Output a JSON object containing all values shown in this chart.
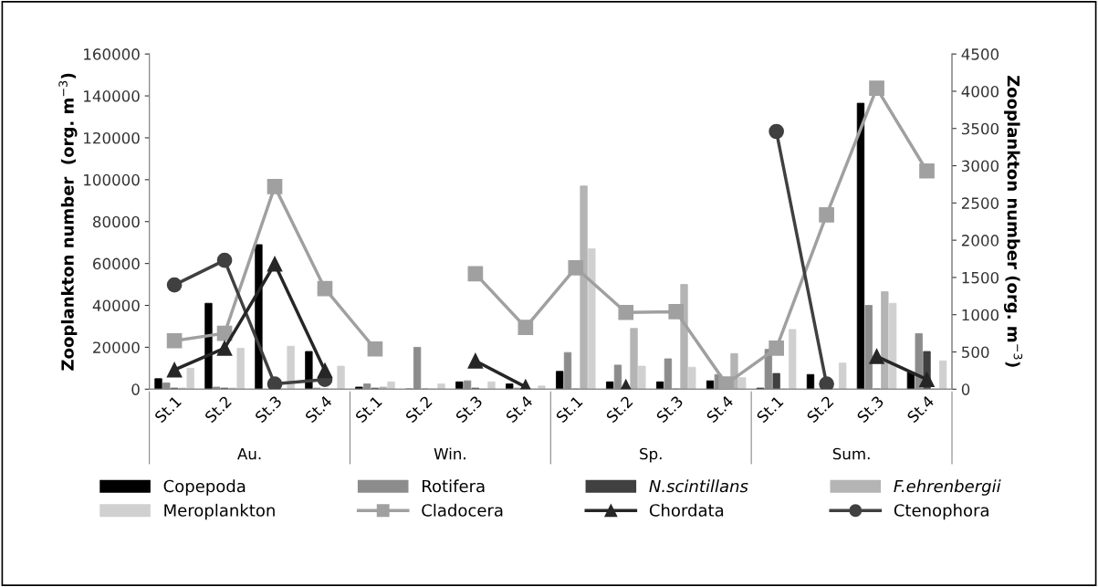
{
  "chart_data": {
    "type": "bar",
    "categories": [
      "St.1",
      "St.2",
      "St.3",
      "St.4",
      "St.1",
      "St.2",
      "St.3",
      "St.4",
      "St.1",
      "St.2",
      "St.3",
      "St.4",
      "St.1",
      "St.2",
      "St.3",
      "St.4"
    ],
    "annotations": [
      "Au.",
      "Win.",
      "Sp.",
      "Sum."
    ],
    "ylabel": "Zooplankton number  (org. m$^{−3}$)",
    "y2label": "Zooplankton number (org. m$^{−3}$)",
    "ylim": [
      0,
      160000
    ],
    "yticks": [
      0,
      20000,
      40000,
      60000,
      80000,
      100000,
      120000,
      140000,
      160000
    ],
    "y2lim": [
      0,
      4500
    ],
    "y2ticks": [
      0,
      500,
      1000,
      1500,
      2000,
      2500,
      3000,
      3500,
      4000,
      4500
    ],
    "grid": false,
    "legend": "bottom",
    "series": [
      {
        "name": "Copepoda",
        "color": "#000000",
        "values": [
          5000,
          41000,
          69000,
          18000,
          1000,
          0,
          3500,
          2500,
          8500,
          3500,
          3500,
          4000,
          500,
          7000,
          136500,
          8000
        ]
      },
      {
        "name": "Rotifera",
        "color": "#8c8c8c",
        "values": [
          3000,
          1000,
          null,
          500,
          2500,
          20000,
          4000,
          500,
          17500,
          11500,
          14500,
          7000,
          19000,
          0,
          40000,
          26500
        ]
      },
      {
        "name": "N.scintillans",
        "color": "#404040",
        "values": [
          500,
          500,
          0,
          0,
          500,
          0,
          500,
          0,
          0,
          0,
          0,
          0,
          7500,
          0,
          0,
          18000
        ]
      },
      {
        "name": "F.ehrenbergii",
        "color": "#b4b4b4",
        "values": [
          500,
          500,
          0,
          0,
          1000,
          0,
          0,
          0,
          97000,
          29000,
          50000,
          17000,
          0,
          0,
          46500,
          0
        ]
      },
      {
        "name": "Meroplankton",
        "color": "#d0d0d0",
        "values": [
          10000,
          19500,
          20500,
          11000,
          3500,
          2500,
          3500,
          1500,
          67000,
          11000,
          10500,
          5500,
          28500,
          12500,
          41000,
          13500
        ]
      },
      {
        "name": "Cladocera",
        "type": "line",
        "axis": "y2",
        "marker": "square",
        "color": "#a0a0a0",
        "values": [
          650,
          750,
          2720,
          1350,
          540,
          null,
          1550,
          830,
          1630,
          1030,
          1040,
          70,
          550,
          2340,
          4040,
          2930
        ]
      },
      {
        "name": "Chordata",
        "type": "line",
        "axis": "y2",
        "marker": "triangle",
        "color": "#262626",
        "values": [
          260,
          550,
          1680,
          250,
          null,
          null,
          380,
          30,
          null,
          30,
          null,
          null,
          null,
          null,
          440,
          130
        ]
      },
      {
        "name": "Ctenophora",
        "type": "line",
        "axis": "y2",
        "marker": "circle",
        "color": "#404040",
        "values": [
          1400,
          1730,
          70,
          130,
          null,
          null,
          null,
          null,
          null,
          null,
          null,
          null,
          3460,
          70,
          null,
          null
        ]
      }
    ]
  }
}
